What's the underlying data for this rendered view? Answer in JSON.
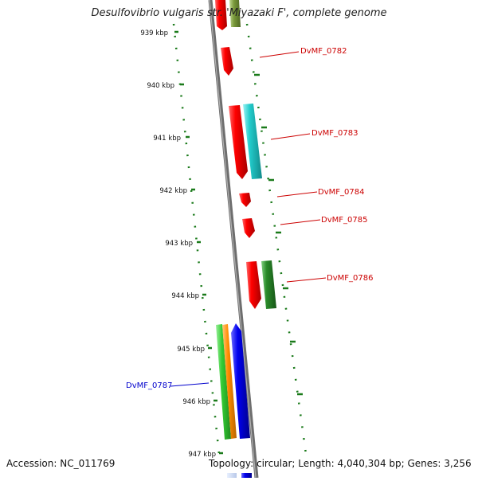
{
  "title": "Desulfovibrio vulgaris str. 'Miyazaki F', complete genome",
  "accession": "Accession: NC_011769",
  "summary": "Topology: circular; Length: 4,040,304 bp; Genes: 3,256",
  "ruler": [
    "939 kbp",
    "940 kbp",
    "941 kbp",
    "942 kbp",
    "943 kbp",
    "944 kbp",
    "945 kbp",
    "946 kbp",
    "947 kbp"
  ],
  "genes": [
    {
      "label": "DvMF_0782",
      "color": "#cc0000"
    },
    {
      "label": "DvMF_0783",
      "color": "#cc0000"
    },
    {
      "label": "DvMF_0784",
      "color": "#cc0000"
    },
    {
      "label": "DvMF_0785",
      "color": "#cc0000"
    },
    {
      "label": "DvMF_0786",
      "color": "#cc0000"
    },
    {
      "label": "DvMF_0787",
      "color": "#0000cc"
    }
  ],
  "colors": {
    "red": "#e00000",
    "cyan": "#20c8c8",
    "green": "#2a8a2a",
    "lightgreen": "#33cc33",
    "orange": "#ff8c00",
    "blue": "#0000ee",
    "olive": "#7a9a3a",
    "dots": "#1a7a1a",
    "axis": "#777777"
  }
}
